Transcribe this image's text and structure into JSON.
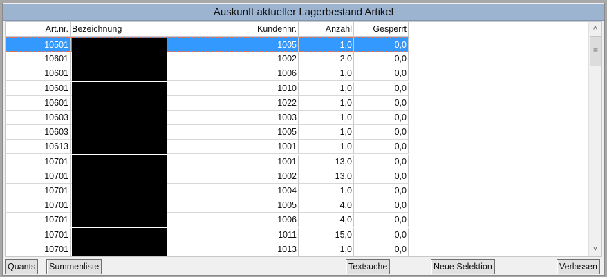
{
  "title": "Auskunft aktueller Lagerbestand Artikel",
  "columns": [
    "Art.nr.",
    "Bezeichnung",
    "Kundennr.",
    "Anzahl",
    "Gesperrt"
  ],
  "rows": [
    [
      "10501",
      "",
      "1005",
      "1,0",
      "0,0"
    ],
    [
      "10601",
      "",
      "1002",
      "2,0",
      "0,0"
    ],
    [
      "10601",
      "",
      "1006",
      "1,0",
      "0,0"
    ],
    [
      "10601",
      "",
      "1010",
      "1,0",
      "0,0"
    ],
    [
      "10601",
      "",
      "1022",
      "1,0",
      "0,0"
    ],
    [
      "10603",
      "",
      "1003",
      "1,0",
      "0,0"
    ],
    [
      "10603",
      "",
      "1005",
      "1,0",
      "0,0"
    ],
    [
      "10613",
      "",
      "1001",
      "1,0",
      "0,0"
    ],
    [
      "10701",
      "",
      "1001",
      "13,0",
      "0,0"
    ],
    [
      "10701",
      "",
      "1002",
      "13,0",
      "0,0"
    ],
    [
      "10701",
      "",
      "1004",
      "1,0",
      "0,0"
    ],
    [
      "10701",
      "",
      "1005",
      "4,0",
      "0,0"
    ],
    [
      "10701",
      "",
      "1006",
      "4,0",
      "0,0"
    ],
    [
      "10701",
      "",
      "1011",
      "15,0",
      "0,0"
    ],
    [
      "10701",
      "",
      "1013",
      "1,0",
      "0,0"
    ]
  ],
  "selected_row": 0,
  "scrollbar": {
    "up": "˄",
    "down": "˅",
    "thumb": "≡"
  },
  "buttons": {
    "quants": "Quants",
    "summenliste": "Summenliste",
    "textsuche": "Textsuche",
    "neue_selektion": "Neue Selektion",
    "verlassen": "Verlassen"
  },
  "colors": {
    "selection": "#3399ff",
    "title_bar": "#9db4d0"
  }
}
